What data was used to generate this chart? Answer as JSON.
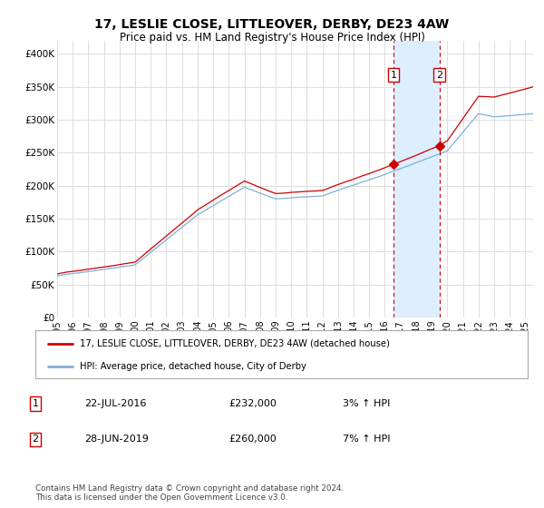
{
  "title": "17, LESLIE CLOSE, LITTLEOVER, DERBY, DE23 4AW",
  "subtitle": "Price paid vs. HM Land Registry's House Price Index (HPI)",
  "ylabel_ticks": [
    "£0",
    "£50K",
    "£100K",
    "£150K",
    "£200K",
    "£250K",
    "£300K",
    "£350K",
    "£400K"
  ],
  "ytick_values": [
    0,
    50000,
    100000,
    150000,
    200000,
    250000,
    300000,
    350000,
    400000
  ],
  "ylim": [
    0,
    420000
  ],
  "xlim_start": 1995.0,
  "xlim_end": 2025.5,
  "red_line_color": "#cc0000",
  "blue_line_color": "#7fb0d8",
  "blue_fill_color": "#ddeeff",
  "marker_color": "#cc0000",
  "grid_color": "#dddddd",
  "bg_color": "#ffffff",
  "sale1_x": 2016.55,
  "sale1_y": 232000,
  "sale1_label": "1",
  "sale2_x": 2019.49,
  "sale2_y": 260000,
  "sale2_label": "2",
  "legend_line1": "17, LESLIE CLOSE, LITTLEOVER, DERBY, DE23 4AW (detached house)",
  "legend_line2": "HPI: Average price, detached house, City of Derby",
  "table_row1_num": "1",
  "table_row1_date": "22-JUL-2016",
  "table_row1_price": "£232,000",
  "table_row1_hpi": "3% ↑ HPI",
  "table_row2_num": "2",
  "table_row2_date": "28-JUN-2019",
  "table_row2_price": "£260,000",
  "table_row2_hpi": "7% ↑ HPI",
  "footer": "Contains HM Land Registry data © Crown copyright and database right 2024.\nThis data is licensed under the Open Government Licence v3.0."
}
